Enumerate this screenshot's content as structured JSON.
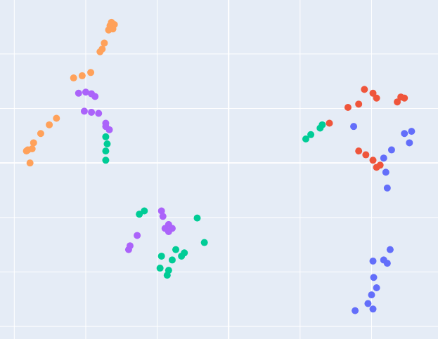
{
  "chart_data": {
    "type": "scatter",
    "xlim": [
      -3.2,
      2.93
    ],
    "ylim": [
      -3.23,
      2.99
    ],
    "xticks": [
      -3,
      -2,
      -1,
      0,
      1,
      2
    ],
    "yticks": [
      -3,
      -2,
      -1,
      0,
      1,
      2
    ],
    "grid": true,
    "zeroline": true,
    "background": "#e5ecf6",
    "series": [
      {
        "color": "#FFA15A",
        "x": [
          -1.64,
          -1.66,
          -1.62,
          -1.68,
          -1.6,
          -1.64,
          -1.74,
          -1.77,
          -1.8,
          -2.17,
          -2.05,
          -1.93,
          -2.41,
          -2.51,
          -2.63,
          -2.73,
          -2.81,
          -2.83,
          -2.75,
          -2.78
        ],
        "y": [
          2.5,
          2.52,
          2.46,
          2.44,
          2.54,
          2.58,
          2.2,
          2.09,
          2.04,
          1.56,
          1.6,
          1.66,
          0.82,
          0.7,
          0.54,
          0.37,
          0.24,
          0.22,
          0.26,
          0.0
        ]
      },
      {
        "color": "#ab63fa",
        "x": [
          -2.1,
          -2.0,
          -1.92,
          -1.87,
          -2.02,
          -1.92,
          -1.82,
          -1.72,
          -1.67,
          -1.72,
          -0.94,
          -0.92,
          -0.84,
          -0.79,
          -0.89,
          -0.84,
          -1.28,
          -1.38,
          -1.4
        ],
        "y": [
          1.28,
          1.3,
          1.27,
          1.22,
          0.95,
          0.93,
          0.91,
          0.73,
          0.61,
          0.67,
          -0.88,
          -0.98,
          -1.13,
          -1.2,
          -1.2,
          -1.26,
          -1.33,
          -1.52,
          -1.59
        ]
      },
      {
        "color": "#00cc96",
        "x": [
          -1.72,
          -1.7,
          -1.72,
          -1.72,
          1.08,
          1.15,
          1.28,
          1.31,
          -1.18,
          -1.25,
          -0.44,
          -0.34,
          -0.74,
          -0.66,
          -0.79,
          -0.94,
          -0.96,
          -0.84,
          -0.86,
          -0.62
        ],
        "y": [
          0.48,
          0.35,
          0.22,
          0.05,
          0.44,
          0.52,
          0.64,
          0.7,
          -0.88,
          -0.94,
          -1.01,
          -1.46,
          -1.59,
          -1.71,
          -1.78,
          -1.71,
          -1.93,
          -1.97,
          -2.06,
          -1.65
        ]
      },
      {
        "color": "#EF553B",
        "x": [
          1.9,
          2.02,
          2.07,
          2.41,
          2.46,
          2.36,
          1.82,
          1.67,
          1.41,
          1.82,
          1.92,
          2.07,
          2.12,
          2.02
        ],
        "y": [
          1.35,
          1.28,
          1.19,
          1.21,
          1.19,
          1.12,
          1.08,
          1.02,
          0.73,
          0.22,
          0.15,
          -0.08,
          -0.04,
          0.05
        ]
      },
      {
        "color": "#636efa",
        "x": [
          1.75,
          2.56,
          2.46,
          2.53,
          2.28,
          2.17,
          2.2,
          2.22,
          2.26,
          2.17,
          2.02,
          2.03,
          2.07,
          2.0,
          1.95,
          2.02,
          1.77,
          2.22
        ],
        "y": [
          0.67,
          0.58,
          0.54,
          0.37,
          0.24,
          0.09,
          -0.17,
          -0.46,
          -1.59,
          -1.78,
          -1.8,
          -2.1,
          -2.29,
          -2.42,
          -2.58,
          -2.68,
          -2.71,
          -1.84
        ]
      }
    ]
  }
}
